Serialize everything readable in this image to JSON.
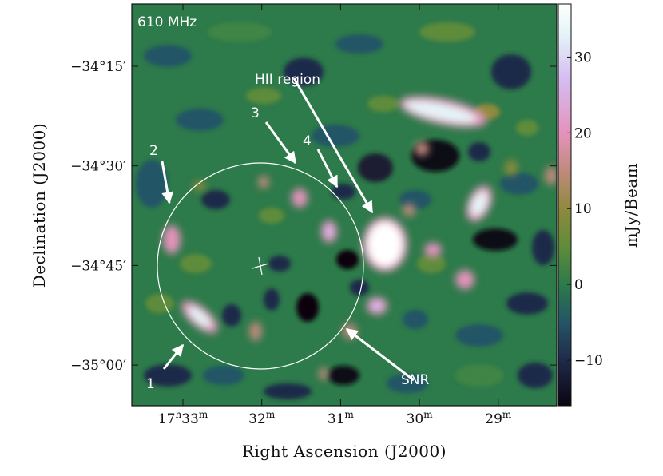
{
  "chart_data": {
    "type": "heatmap",
    "title": "610 MHz",
    "xlabel": "Right Ascension (J2000)",
    "ylabel": "Declination (J2000)",
    "colorbar_label": "mJy/Beam",
    "x_ticks": [
      {
        "label": "17h33m",
        "h": "17",
        "m": "33",
        "ra_min": 33
      },
      {
        "label": "32m",
        "h": "",
        "m": "32",
        "ra_min": 32
      },
      {
        "label": "31m",
        "h": "",
        "m": "31",
        "ra_min": 31
      },
      {
        "label": "30m",
        "h": "",
        "m": "30",
        "ra_min": 30
      },
      {
        "label": "29m",
        "h": "",
        "m": "29",
        "ra_min": 29
      }
    ],
    "y_ticks": [
      {
        "label": "−34°15′",
        "dec": -34.25
      },
      {
        "label": "−34°30′",
        "dec": -34.5
      },
      {
        "label": "−34°45′",
        "dec": -34.75
      },
      {
        "label": "−35°00′",
        "dec": -35.0
      }
    ],
    "colorbar": {
      "range": [
        -16,
        37
      ],
      "ticks": [
        {
          "label": "30",
          "value": 30
        },
        {
          "label": "20",
          "value": 20
        },
        {
          "label": "10",
          "value": 10
        },
        {
          "label": "0",
          "value": 0
        },
        {
          "label": "−10",
          "value": -10
        }
      ],
      "stops": [
        {
          "v": -16,
          "c": "#0a0410"
        },
        {
          "v": -10,
          "c": "#1f2a4a"
        },
        {
          "v": -5,
          "c": "#245566"
        },
        {
          "v": 0,
          "c": "#2d7a4a"
        },
        {
          "v": 5,
          "c": "#5f8c3a"
        },
        {
          "v": 10,
          "c": "#8f8a3e"
        },
        {
          "v": 15,
          "c": "#c08a7c"
        },
        {
          "v": 20,
          "c": "#e493bb"
        },
        {
          "v": 27,
          "c": "#d5bcf2"
        },
        {
          "v": 33,
          "c": "#e4f4f8"
        },
        {
          "v": 37,
          "c": "#ffffff"
        }
      ]
    },
    "annotations": [
      {
        "id": "hii",
        "text": "HII region"
      },
      {
        "id": "snr",
        "text": "SNR"
      },
      {
        "id": "n1",
        "text": "1"
      },
      {
        "id": "n2",
        "text": "2"
      },
      {
        "id": "n3",
        "text": "3"
      },
      {
        "id": "n4",
        "text": "4"
      }
    ]
  },
  "colors": {
    "annotation": "#ffffff",
    "background": "#2d7a4a",
    "frame": "#111111"
  }
}
